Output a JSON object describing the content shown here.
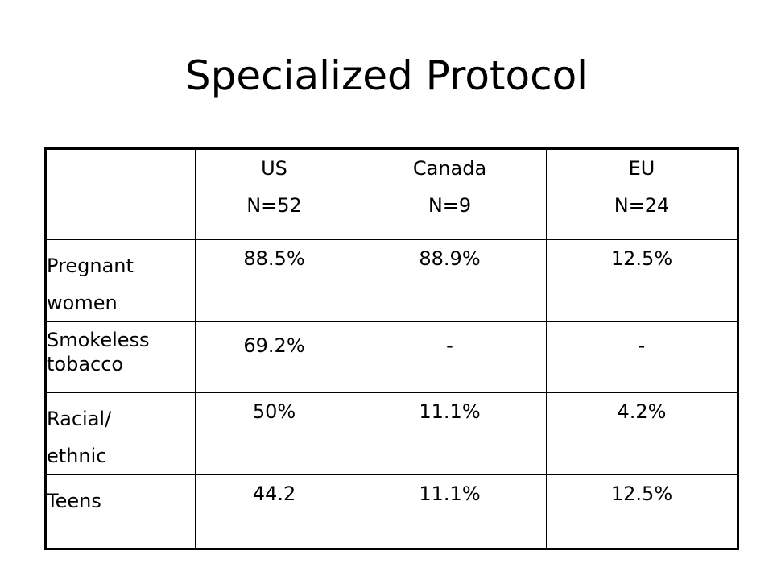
{
  "title": "Specialized Protocol",
  "table": {
    "columns": [
      {
        "name": "US",
        "n": "N=52"
      },
      {
        "name": "Canada",
        "n": "N=9"
      },
      {
        "name": "EU",
        "n": "N=24"
      }
    ],
    "rows": [
      {
        "label_lines": [
          "Pregnant",
          "women"
        ],
        "values": [
          "88.5%",
          "88.9%",
          "12.5%"
        ]
      },
      {
        "label_lines": [
          "Smokeless",
          "tobacco"
        ],
        "values": [
          "69.2%",
          "-",
          "-"
        ]
      },
      {
        "label_lines": [
          "Racial/",
          "ethnic"
        ],
        "values": [
          "50%",
          "11.1%",
          "4.2%"
        ]
      },
      {
        "label_lines": [
          "Teens"
        ],
        "values": [
          "44.2",
          "11.1%",
          "12.5%"
        ]
      }
    ]
  }
}
